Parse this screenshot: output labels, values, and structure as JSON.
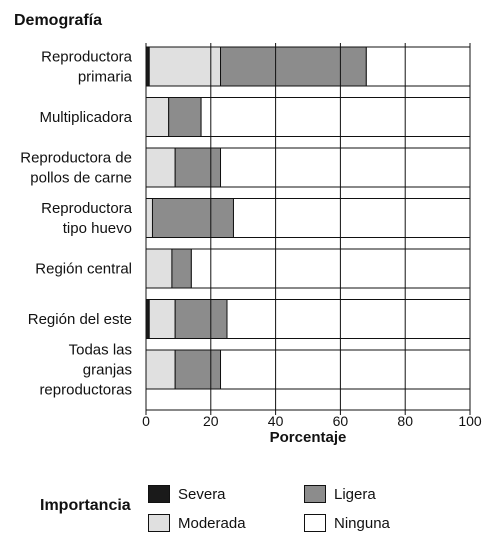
{
  "chart_data": {
    "type": "bar",
    "orientation": "horizontal",
    "stacked": true,
    "title": "Demografía",
    "xlabel": "Porcentaje",
    "xlim": [
      0,
      100
    ],
    "xticks": [
      "0",
      "20",
      "40",
      "60",
      "80",
      "100"
    ],
    "categories": [
      [
        "Reproductora",
        "primaria"
      ],
      [
        "Multiplicadora"
      ],
      [
        "Reproductora de",
        "pollos de carne"
      ],
      [
        "Reproductora",
        "tipo huevo"
      ],
      [
        "Región central"
      ],
      [
        "Región del este"
      ],
      [
        "Todas las",
        "granjas",
        "reproductoras"
      ]
    ],
    "series": [
      {
        "name": "Severa",
        "color": "#1a1a1a",
        "values": [
          1,
          0,
          0,
          0,
          0,
          1,
          0
        ]
      },
      {
        "name": "Moderada",
        "color": "#e0e0e0",
        "values": [
          22,
          7,
          9,
          2,
          8,
          8,
          9
        ]
      },
      {
        "name": "Ligera",
        "color": "#8c8c8c",
        "values": [
          45,
          10,
          14,
          25,
          6,
          16,
          14
        ]
      },
      {
        "name": "Ninguna",
        "color": "#ffffff",
        "values": [
          32,
          83,
          77,
          73,
          86,
          75,
          77
        ]
      }
    ],
    "legend_title": "Importancia",
    "legend_position": "bottom",
    "grid": true
  }
}
